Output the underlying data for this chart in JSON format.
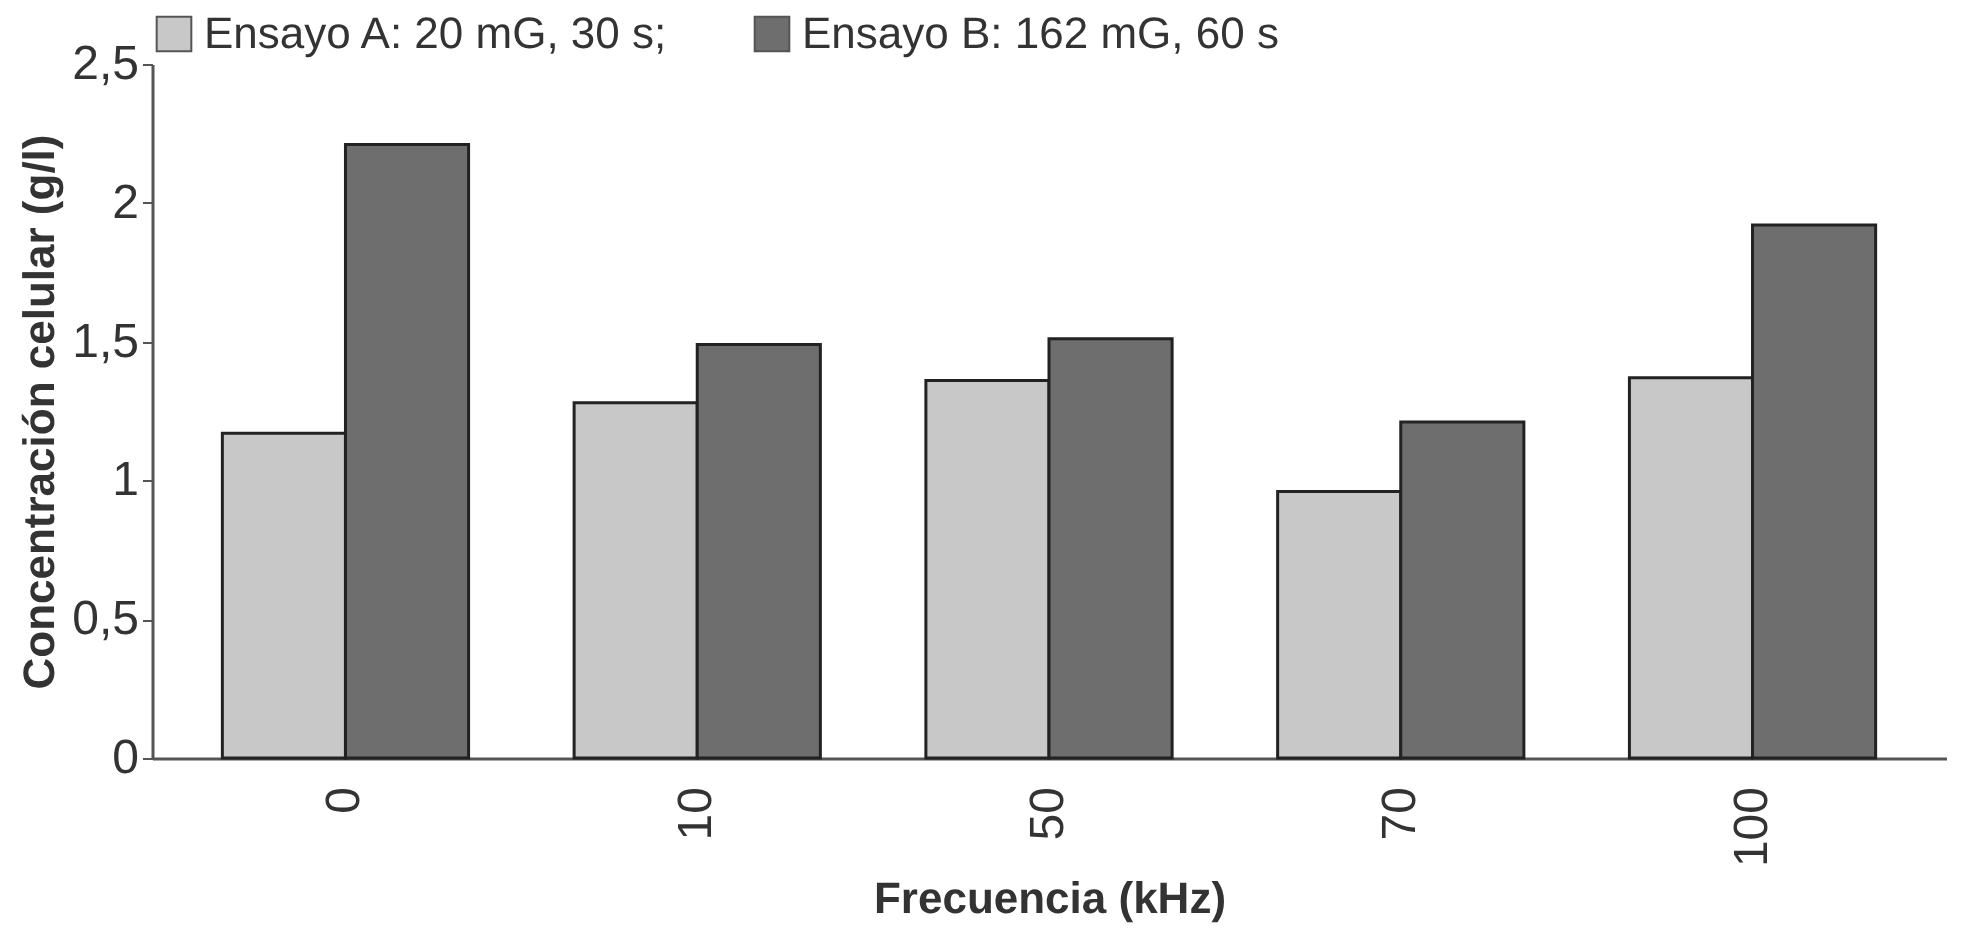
{
  "chart_data": {
    "type": "bar",
    "xlabel": "Frecuencia (kHz)",
    "ylabel": "Concentración celular (g/l)",
    "categories": [
      "0",
      "10",
      "50",
      "70",
      "100"
    ],
    "series": [
      {
        "name": "Ensayo A: 20 mG, 30 s;",
        "color": "#c8c8c8",
        "values": [
          1.17,
          1.28,
          1.36,
          0.96,
          1.37
        ]
      },
      {
        "name": "Ensayo B: 162 mG, 60 s",
        "color": "#6e6e6e",
        "values": [
          2.21,
          1.49,
          1.51,
          1.21,
          1.92
        ]
      }
    ],
    "ylim": [
      0,
      2.5
    ],
    "yticks": [
      {
        "value": 0,
        "label": "0"
      },
      {
        "value": 0.5,
        "label": "0,5"
      },
      {
        "value": 1,
        "label": "1"
      },
      {
        "value": 1.5,
        "label": "1,5"
      },
      {
        "value": 2,
        "label": "2"
      },
      {
        "value": 2.5,
        "label": "2,5"
      }
    ],
    "legend": "top",
    "grid": false
  }
}
